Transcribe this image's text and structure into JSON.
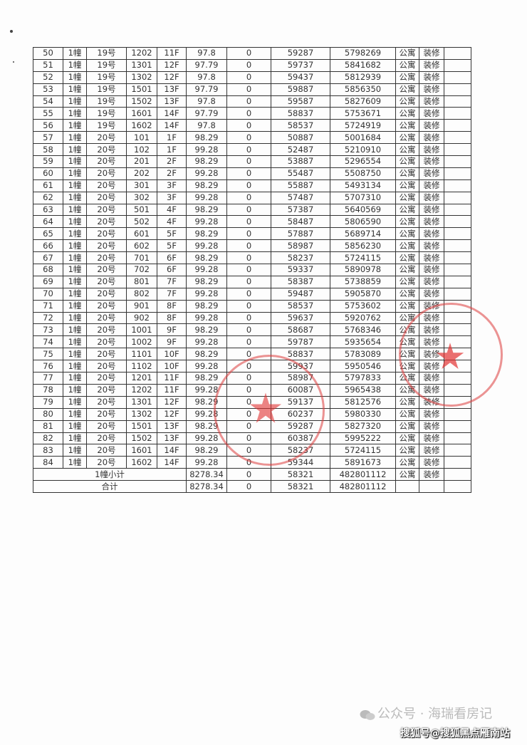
{
  "table": {
    "columns_count": 13,
    "rows": [
      [
        "50",
        "1幢",
        "19号",
        "1202",
        "11F",
        "97.8",
        "0",
        "59287",
        "5798269",
        "公寓",
        "装修"
      ],
      [
        "51",
        "1幢",
        "19号",
        "1301",
        "12F",
        "97.79",
        "0",
        "59737",
        "5841682",
        "公寓",
        "装修"
      ],
      [
        "52",
        "1幢",
        "19号",
        "1302",
        "12F",
        "97.8",
        "0",
        "59437",
        "5812939",
        "公寓",
        "装修"
      ],
      [
        "53",
        "1幢",
        "19号",
        "1501",
        "13F",
        "97.79",
        "0",
        "59887",
        "5856350",
        "公寓",
        "装修"
      ],
      [
        "54",
        "1幢",
        "19号",
        "1502",
        "13F",
        "97.8",
        "0",
        "59587",
        "5827609",
        "公寓",
        "装修"
      ],
      [
        "55",
        "1幢",
        "19号",
        "1601",
        "14F",
        "97.79",
        "0",
        "58837",
        "5753671",
        "公寓",
        "装修"
      ],
      [
        "56",
        "1幢",
        "19号",
        "1602",
        "14F",
        "97.8",
        "0",
        "58537",
        "5724919",
        "公寓",
        "装修"
      ],
      [
        "57",
        "1幢",
        "20号",
        "101",
        "1F",
        "98.29",
        "0",
        "50887",
        "5001684",
        "公寓",
        "装修"
      ],
      [
        "58",
        "1幢",
        "20号",
        "102",
        "1F",
        "99.28",
        "0",
        "52487",
        "5210910",
        "公寓",
        "装修"
      ],
      [
        "59",
        "1幢",
        "20号",
        "201",
        "2F",
        "98.29",
        "0",
        "53887",
        "5296554",
        "公寓",
        "装修"
      ],
      [
        "60",
        "1幢",
        "20号",
        "202",
        "2F",
        "99.28",
        "0",
        "55487",
        "5508750",
        "公寓",
        "装修"
      ],
      [
        "61",
        "1幢",
        "20号",
        "301",
        "3F",
        "98.29",
        "0",
        "55887",
        "5493134",
        "公寓",
        "装修"
      ],
      [
        "62",
        "1幢",
        "20号",
        "302",
        "3F",
        "99.28",
        "0",
        "57487",
        "5707310",
        "公寓",
        "装修"
      ],
      [
        "63",
        "1幢",
        "20号",
        "501",
        "4F",
        "98.29",
        "0",
        "57387",
        "5640569",
        "公寓",
        "装修"
      ],
      [
        "64",
        "1幢",
        "20号",
        "502",
        "4F",
        "99.28",
        "0",
        "58487",
        "5806590",
        "公寓",
        "装修"
      ],
      [
        "65",
        "1幢",
        "20号",
        "601",
        "5F",
        "98.29",
        "0",
        "57887",
        "5689714",
        "公寓",
        "装修"
      ],
      [
        "66",
        "1幢",
        "20号",
        "602",
        "5F",
        "99.28",
        "0",
        "58987",
        "5856230",
        "公寓",
        "装修"
      ],
      [
        "67",
        "1幢",
        "20号",
        "701",
        "6F",
        "98.29",
        "0",
        "58237",
        "5724115",
        "公寓",
        "装修"
      ],
      [
        "68",
        "1幢",
        "20号",
        "702",
        "6F",
        "99.28",
        "0",
        "59337",
        "5890978",
        "公寓",
        "装修"
      ],
      [
        "69",
        "1幢",
        "20号",
        "801",
        "7F",
        "98.29",
        "0",
        "58387",
        "5738859",
        "公寓",
        "装修"
      ],
      [
        "70",
        "1幢",
        "20号",
        "802",
        "7F",
        "99.28",
        "0",
        "59487",
        "5905870",
        "公寓",
        "装修"
      ],
      [
        "71",
        "1幢",
        "20号",
        "901",
        "8F",
        "98.29",
        "0",
        "58537",
        "5753602",
        "公寓",
        "装修"
      ],
      [
        "72",
        "1幢",
        "20号",
        "902",
        "8F",
        "99.28",
        "0",
        "59637",
        "5920762",
        "公寓",
        "装修"
      ],
      [
        "73",
        "1幢",
        "20号",
        "1001",
        "9F",
        "98.29",
        "0",
        "58687",
        "5768346",
        "公寓",
        "装修"
      ],
      [
        "74",
        "1幢",
        "20号",
        "1002",
        "9F",
        "99.28",
        "0",
        "59787",
        "5935654",
        "公寓",
        "装修"
      ],
      [
        "75",
        "1幢",
        "20号",
        "1101",
        "10F",
        "98.29",
        "0",
        "58837",
        "5783089",
        "公寓",
        "装修"
      ],
      [
        "76",
        "1幢",
        "20号",
        "1102",
        "10F",
        "99.28",
        "0",
        "59937",
        "5950546",
        "公寓",
        "装修"
      ],
      [
        "77",
        "1幢",
        "20号",
        "1201",
        "11F",
        "98.29",
        "0",
        "58987",
        "5797833",
        "公寓",
        "装修"
      ],
      [
        "78",
        "1幢",
        "20号",
        "1202",
        "11F",
        "99.28",
        "0",
        "60087",
        "5965438",
        "公寓",
        "装修"
      ],
      [
        "79",
        "1幢",
        "20号",
        "1301",
        "12F",
        "98.29",
        "0",
        "59137",
        "5812576",
        "公寓",
        "装修"
      ],
      [
        "80",
        "1幢",
        "20号",
        "1302",
        "12F",
        "99.28",
        "0",
        "60237",
        "5980330",
        "公寓",
        "装修"
      ],
      [
        "81",
        "1幢",
        "20号",
        "1501",
        "13F",
        "98.29",
        "0",
        "59287",
        "5827320",
        "公寓",
        "装修"
      ],
      [
        "82",
        "1幢",
        "20号",
        "1502",
        "13F",
        "99.28",
        "0",
        "60387",
        "5995222",
        "公寓",
        "装修"
      ],
      [
        "83",
        "1幢",
        "20号",
        "1601",
        "14F",
        "98.29",
        "0",
        "58237",
        "5724115",
        "公寓",
        "装修"
      ],
      [
        "84",
        "1幢",
        "20号",
        "1602",
        "14F",
        "99.28",
        "0",
        "59344",
        "5891673",
        "公寓",
        "装修"
      ]
    ],
    "subtotal": {
      "label": "1幢小计",
      "area": "8278.34",
      "col7": "0",
      "price": "58321",
      "total": "482801112",
      "type": "公寓",
      "decor": "装修"
    },
    "grand_total": {
      "label": "合计",
      "area": "8278.34",
      "col7": "0",
      "price": "58321",
      "total": "482801112"
    }
  },
  "stamps": {
    "color": "#dc3c3c",
    "icon": "star-icon"
  },
  "watermark": {
    "line1_icon": "wechat-icon",
    "line1": "公众号 · 海瑞看房记",
    "line2": "搜狐号@搜狐黑点雁南站"
  }
}
